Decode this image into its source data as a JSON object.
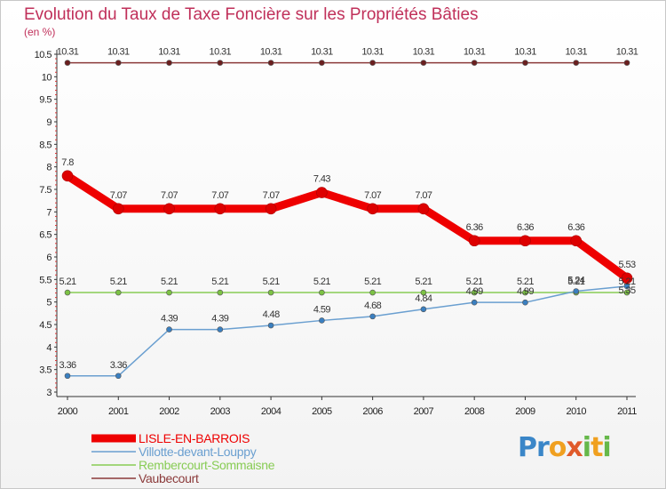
{
  "chart_data": {
    "type": "line",
    "title": "Evolution du Taux de Taxe Foncière sur les Propriétés Bâties",
    "ylabel": "(en %)",
    "xlabel": "",
    "x": [
      "2000",
      "2001",
      "2002",
      "2003",
      "2004",
      "2005",
      "2006",
      "2007",
      "2008",
      "2009",
      "2010",
      "2011"
    ],
    "ylim": [
      3,
      10.5
    ],
    "yticks": [
      "3",
      "3.5",
      "4",
      "4.5",
      "5",
      "5.5",
      "6",
      "6.5",
      "7",
      "7.5",
      "8",
      "8.5",
      "9",
      "9.5",
      "10",
      "10.5"
    ],
    "series": [
      {
        "name": "LISLE-EN-BARROIS",
        "color": "#ee0000",
        "values": [
          7.8,
          7.07,
          7.07,
          7.07,
          7.07,
          7.43,
          7.07,
          7.07,
          6.36,
          6.36,
          6.36,
          5.53
        ],
        "labels": [
          "7.8",
          "7.07",
          "7.07",
          "7.07",
          "7.07",
          "7.43",
          "7.07",
          "7.07",
          "6.36",
          "6.36",
          "6.36",
          "5.53"
        ]
      },
      {
        "name": "Villotte-devant-Louppy",
        "color": "#6a9fd0",
        "values": [
          3.36,
          3.36,
          4.39,
          4.39,
          4.48,
          4.59,
          4.68,
          4.84,
          4.99,
          4.99,
          5.24,
          5.35
        ],
        "labels": [
          "3.36",
          "3.36",
          "4.39",
          "4.39",
          "4.48",
          "4.59",
          "4.68",
          "4.84",
          "4.99",
          "4.99",
          "5.24",
          "5.35"
        ]
      },
      {
        "name": "Rembercourt-Sommaisne",
        "color": "#88cc55",
        "values": [
          5.21,
          5.21,
          5.21,
          5.21,
          5.21,
          5.21,
          5.21,
          5.21,
          5.21,
          5.21,
          5.21,
          5.21
        ],
        "labels": [
          "5.21",
          "5.21",
          "5.21",
          "5.21",
          "5.21",
          "5.21",
          "5.21",
          "5.21",
          "5.21",
          "5.21",
          "5.21",
          "5.21"
        ]
      },
      {
        "name": "Vaubecourt",
        "color": "#8b3a3a",
        "values": [
          10.31,
          10.31,
          10.31,
          10.31,
          10.31,
          10.31,
          10.31,
          10.31,
          10.31,
          10.31,
          10.31,
          10.31
        ],
        "labels": [
          "10.31",
          "10.31",
          "10.31",
          "10.31",
          "10.31",
          "10.31",
          "10.31",
          "10.31",
          "10.31",
          "10.31",
          "10.31",
          "10.31"
        ]
      }
    ],
    "legend": {
      "position": "bottom-left"
    },
    "grid": false
  },
  "brand": {
    "p1": "Pr",
    "p2": "o",
    "p3": "x",
    "p4": "i",
    "p5": "t",
    "p6": "i"
  }
}
